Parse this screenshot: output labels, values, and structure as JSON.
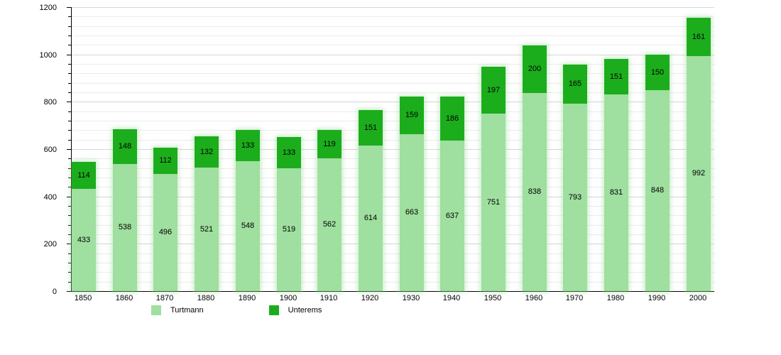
{
  "chart_data": {
    "type": "bar",
    "stacked": true,
    "title": "",
    "xlabel": "",
    "ylabel": "",
    "categories": [
      "1850",
      "1860",
      "1870",
      "1880",
      "1890",
      "1900",
      "1910",
      "1920",
      "1930",
      "1940",
      "1950",
      "1960",
      "1970",
      "1980",
      "1990",
      "2000"
    ],
    "series": [
      {
        "name": "Turtmann",
        "color": "#9fdf9f",
        "values": [
          433,
          538,
          496,
          521,
          548,
          519,
          562,
          614,
          663,
          637,
          751,
          838,
          793,
          831,
          848,
          992
        ]
      },
      {
        "name": "Unterems",
        "color": "#1cad1c",
        "values": [
          114,
          148,
          112,
          132,
          133,
          133,
          119,
          151,
          159,
          186,
          197,
          200,
          165,
          151,
          150,
          161
        ]
      }
    ],
    "ylim": [
      0,
      1200
    ],
    "y_major_increment": 200,
    "y_minor_increment": 40,
    "y_tick_labels": [
      "0",
      "200",
      "400",
      "600",
      "800",
      "1000",
      "1200"
    ],
    "grid": true,
    "legend_position": "bottom",
    "bar_value_labels_shown": true
  },
  "style": {
    "axis_color": "#000000",
    "grid_minor_color": "#ececec",
    "grid_major_color": "#d6d6d6",
    "label_color": "#000000",
    "background": "#ffffff"
  }
}
